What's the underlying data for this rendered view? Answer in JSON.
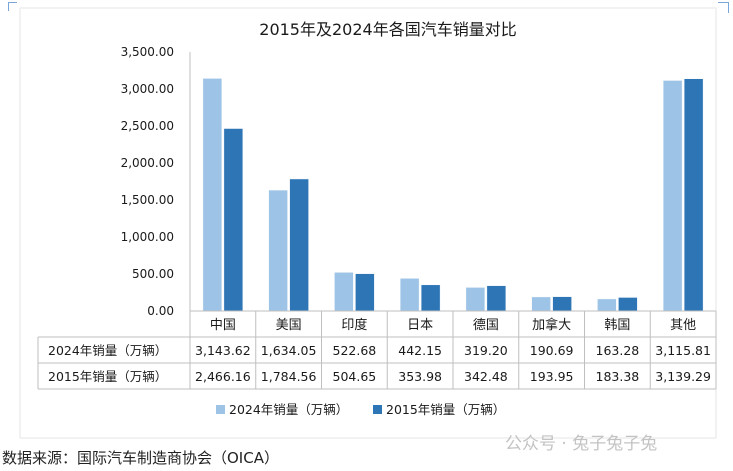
{
  "chart_data": {
    "type": "bar",
    "title": "2015年及2024年各国汽车销量对比",
    "categories": [
      "中国",
      "美国",
      "印度",
      "日本",
      "德国",
      "加拿大",
      "韩国",
      "其他"
    ],
    "series": [
      {
        "name": "2024年销量（万辆）",
        "color": "#9dc3e6",
        "values": [
          3143.62,
          1634.05,
          522.68,
          442.15,
          319.2,
          190.69,
          163.28,
          3115.81
        ],
        "labels": [
          "3,143.62",
          "1,634.05",
          "522.68",
          "442.15",
          "319.20",
          "190.69",
          "163.28",
          "3,115.81"
        ]
      },
      {
        "name": "2015年销量（万辆）",
        "color": "#2e75b6",
        "values": [
          2466.16,
          1784.56,
          504.65,
          353.98,
          342.48,
          193.95,
          183.38,
          3139.29
        ],
        "labels": [
          "2,466.16",
          "1,784.56",
          "504.65",
          "353.98",
          "342.48",
          "193.95",
          "183.38",
          "3,139.29"
        ]
      }
    ],
    "ylim": [
      0,
      3500
    ],
    "yticks": [
      "0.00",
      "500.00",
      "1,000.00",
      "1,500.00",
      "2,000.00",
      "2,500.00",
      "3,000.00",
      "3,500.00"
    ],
    "xlabel": "",
    "ylabel": "",
    "grid": false,
    "legend": "bottom",
    "data_table": true
  },
  "source_note": "数据来源：国际汽车制造商协会（OICA）",
  "watermark": "公众号 · 兔子兔子兔"
}
